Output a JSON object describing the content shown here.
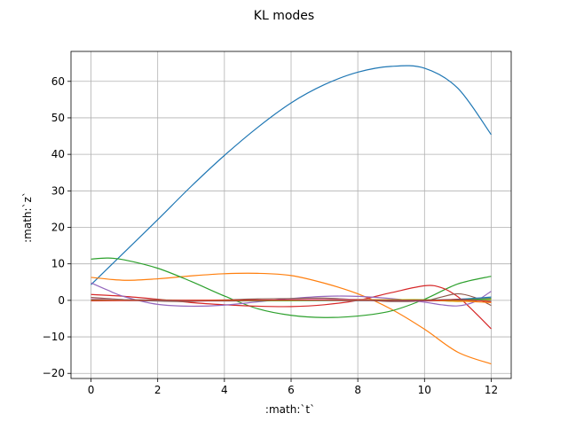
{
  "chart_data": {
    "type": "line",
    "title": "KL modes",
    "xlabel": ":math:`t`",
    "ylabel": ":math:`z`",
    "xlim": [
      -0.6,
      12.6
    ],
    "ylim": [
      -21.4,
      68.2
    ],
    "x_ticks": [
      0,
      2,
      4,
      6,
      8,
      10,
      12
    ],
    "y_ticks": [
      -20,
      -10,
      0,
      10,
      20,
      30,
      40,
      50,
      60
    ],
    "grid": true,
    "legend": "none",
    "series": [
      {
        "color": "#1f77b4",
        "x": [
          0,
          1,
          2,
          3,
          4,
          5,
          6,
          7,
          8,
          9,
          10,
          11,
          12
        ],
        "y": [
          4.3,
          13.2,
          22.1,
          31.2,
          39.7,
          47.4,
          54.1,
          59.1,
          62.5,
          64.1,
          63.6,
          58.1,
          45.4
        ]
      },
      {
        "color": "#ff7f0e",
        "x": [
          0,
          1,
          2,
          3,
          4,
          5,
          6,
          7,
          8,
          9,
          10,
          11,
          12
        ],
        "y": [
          6.3,
          5.5,
          5.9,
          6.7,
          7.3,
          7.4,
          6.8,
          4.7,
          1.8,
          -2.4,
          -7.9,
          -14.2,
          -17.4
        ]
      },
      {
        "color": "#2ca02c",
        "x": [
          0,
          0.5,
          1,
          2,
          3,
          4,
          5,
          6,
          7,
          8,
          9,
          10,
          11,
          12
        ],
        "y": [
          11.3,
          11.6,
          11.1,
          8.8,
          5.2,
          1.2,
          -2.3,
          -4.1,
          -4.7,
          -4.3,
          -2.9,
          0.3,
          4.5,
          6.6
        ]
      },
      {
        "color": "#d62728",
        "x": [
          0,
          1,
          2,
          3,
          4,
          5,
          6,
          7,
          8,
          9,
          10,
          10.5,
          11,
          11.5,
          12
        ],
        "y": [
          1.6,
          1.1,
          0.3,
          -0.6,
          -1.2,
          -1.6,
          -1.7,
          -1.2,
          0.0,
          2.1,
          4.0,
          3.5,
          1.0,
          -3.2,
          -7.8
        ]
      },
      {
        "color": "#9467bd",
        "x": [
          0,
          0.5,
          1,
          2,
          3,
          4,
          5,
          6,
          7,
          8,
          9,
          10,
          10.5,
          11,
          11.5,
          12
        ],
        "y": [
          4.8,
          2.8,
          1.0,
          -1.1,
          -1.6,
          -1.3,
          -0.4,
          0.5,
          1.1,
          1.1,
          0.5,
          -0.5,
          -1.2,
          -1.5,
          -0.4,
          2.5
        ]
      },
      {
        "color": "#8c564b",
        "x": [
          0,
          1,
          2,
          3,
          4,
          5,
          6,
          7,
          8,
          9,
          10,
          10.5,
          11,
          11.5,
          12
        ],
        "y": [
          0.8,
          0.2,
          -0.2,
          -0.3,
          0.1,
          0.4,
          0.5,
          0.6,
          0.2,
          -0.3,
          -0.1,
          0.9,
          1.8,
          0.8,
          -1.4
        ]
      },
      {
        "color": "#e377c2",
        "x": [
          0,
          2,
          4,
          6,
          8,
          10,
          11,
          12
        ],
        "y": [
          0.4,
          0.0,
          -0.2,
          0.1,
          0.3,
          -0.2,
          0.3,
          0.6
        ]
      },
      {
        "color": "#7f7f7f",
        "x": [
          0,
          2,
          4,
          6,
          8,
          10,
          11,
          12
        ],
        "y": [
          0.2,
          0.1,
          -0.1,
          0.0,
          0.2,
          0.0,
          -0.2,
          0.4
        ]
      },
      {
        "color": "#bcbd22",
        "x": [
          0,
          2,
          4,
          6,
          8,
          10,
          11,
          12
        ],
        "y": [
          -0.1,
          0.1,
          0.0,
          -0.1,
          0.1,
          0.2,
          -0.3,
          0.2
        ]
      },
      {
        "color": "#17becf",
        "x": [
          0,
          2,
          4,
          6,
          8,
          10,
          11,
          12
        ],
        "y": [
          0.1,
          -0.1,
          0.1,
          0.0,
          -0.1,
          0.1,
          0.2,
          -0.2
        ]
      },
      {
        "color": "#1f77b4",
        "x": [
          0,
          2,
          4,
          6,
          8,
          10,
          11,
          12
        ],
        "y": [
          0.0,
          0.1,
          0.0,
          0.1,
          0.0,
          -0.1,
          0.3,
          0.9
        ]
      },
      {
        "color": "#ff7f0e",
        "x": [
          0,
          2,
          4,
          6,
          8,
          10,
          11,
          12
        ],
        "y": [
          0.1,
          0.0,
          0.1,
          0.0,
          0.1,
          0.0,
          -0.2,
          -0.6
        ]
      },
      {
        "color": "#2ca02c",
        "x": [
          0,
          2,
          4,
          6,
          8,
          10,
          11,
          12
        ],
        "y": [
          0.0,
          0.0,
          -0.1,
          0.0,
          0.0,
          0.1,
          0.1,
          0.5
        ]
      },
      {
        "color": "#d62728",
        "x": [
          0,
          2,
          4,
          6,
          8,
          10,
          11,
          12
        ],
        "y": [
          -0.1,
          0.0,
          0.0,
          0.1,
          0.0,
          0.0,
          0.2,
          -0.3
        ]
      }
    ]
  }
}
